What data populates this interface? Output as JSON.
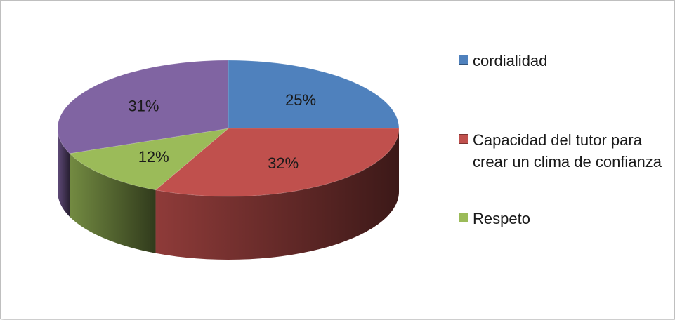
{
  "chart_data": {
    "type": "pie",
    "title": "",
    "slices": [
      {
        "label": "cordialidad",
        "value": 25,
        "display": "25%",
        "color": "#4f81bd"
      },
      {
        "label": "Capacidad del tutor para crear un clima de confianza",
        "value": 32,
        "display": "32%",
        "color": "#c0504d"
      },
      {
        "label": "Respeto",
        "value": 12,
        "display": "12%",
        "color": "#9bbb59"
      },
      {
        "label": "",
        "value": 31,
        "display": "31%",
        "color": "#8064a2"
      }
    ],
    "legend_placement": "right",
    "three_d": true
  },
  "legend": {
    "items": [
      {
        "label": "cordialidad",
        "color": "#4f81bd"
      },
      {
        "label": "Capacidad del tutor para crear un clima de confianza",
        "color": "#c0504d"
      },
      {
        "label": "Respeto",
        "color": "#9bbb59"
      }
    ]
  }
}
